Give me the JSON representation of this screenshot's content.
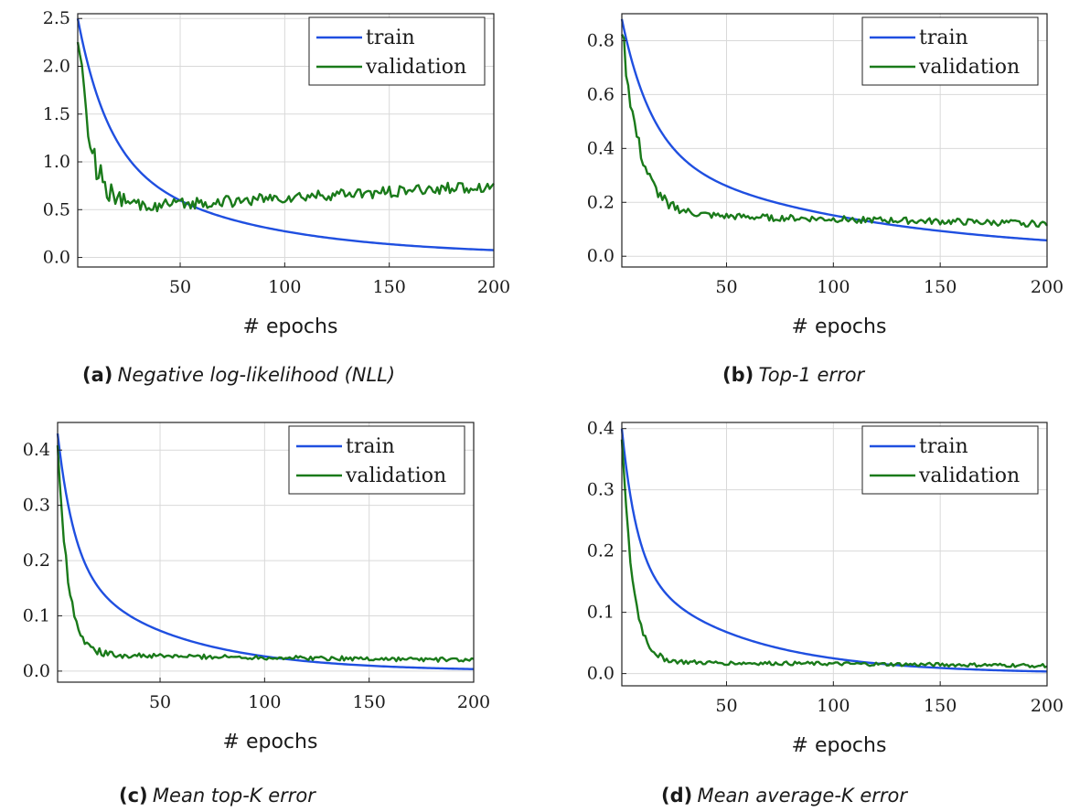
{
  "chart_data": [
    {
      "type": "line",
      "panel_label": "(a)",
      "caption": "Negative log-likelihood (NLL)",
      "xlabel": "# epochs",
      "xticks": [
        50,
        100,
        150,
        200
      ],
      "yticks": [
        0.0,
        0.5,
        1.0,
        1.5,
        2.0,
        2.5
      ],
      "ytick_labels": [
        "0.0",
        "0.5",
        "1.0",
        "1.5",
        "2.0",
        "2.5"
      ],
      "xlim": [
        1,
        200
      ],
      "ylim": [
        -0.1,
        2.55
      ],
      "grid": true,
      "legend_position": "top-right",
      "series": [
        {
          "name": "train",
          "color": "#1f4fe0",
          "start": 2.5,
          "end": 0.02,
          "tau": 14,
          "k2": 0.015,
          "amp": 0
        },
        {
          "name": "validation",
          "color": "#1a7a1a",
          "start": 2.45,
          "mid_min": 0.53,
          "end": 0.75,
          "tau": 6,
          "amp": 0.06
        }
      ]
    },
    {
      "type": "line",
      "panel_label": "(b)",
      "caption": "Top-1 error",
      "xlabel": "# epochs",
      "xticks": [
        50,
        100,
        150,
        200
      ],
      "yticks": [
        0.0,
        0.2,
        0.4,
        0.6,
        0.8
      ],
      "ytick_labels": [
        "0.0",
        "0.2",
        "0.4",
        "0.6",
        "0.8"
      ],
      "xlim": [
        1,
        200
      ],
      "ylim": [
        -0.04,
        0.9
      ],
      "grid": true,
      "legend_position": "top-right",
      "series": [
        {
          "name": "train",
          "color": "#1f4fe0",
          "start": 0.88,
          "end": 0.005,
          "tau": 14,
          "k2": 0.01,
          "amp": 0
        },
        {
          "name": "validation",
          "color": "#1a7a1a",
          "start": 0.86,
          "mid_min": 0.15,
          "end": 0.12,
          "tau": 8,
          "amp": 0.012
        }
      ]
    },
    {
      "type": "line",
      "panel_label": "(c)",
      "caption": "Mean top-K error",
      "xlabel": "# epochs",
      "xticks": [
        50,
        100,
        150,
        200
      ],
      "yticks": [
        0.0,
        0.1,
        0.2,
        0.3,
        0.4
      ],
      "ytick_labels": [
        "0.0",
        "0.1",
        "0.2",
        "0.3",
        "0.4"
      ],
      "xlim": [
        1,
        200
      ],
      "ylim": [
        -0.02,
        0.45
      ],
      "grid": true,
      "legend_position": "top-right",
      "series": [
        {
          "name": "train",
          "color": "#1f4fe0",
          "start": 0.43,
          "end": 0.0,
          "tau": 8,
          "k2": 0.02,
          "amp": 0
        },
        {
          "name": "validation",
          "color": "#1a7a1a",
          "start": 0.42,
          "mid_min": 0.028,
          "end": 0.02,
          "tau": 5,
          "amp": 0.004
        }
      ]
    },
    {
      "type": "line",
      "panel_label": "(d)",
      "caption": "Mean average-K error",
      "xlabel": "# epochs",
      "xticks": [
        50,
        100,
        150,
        200
      ],
      "yticks": [
        0.0,
        0.1,
        0.2,
        0.3,
        0.4
      ],
      "ytick_labels": [
        "0.0",
        "0.1",
        "0.2",
        "0.3",
        "0.4"
      ],
      "xlim": [
        1,
        200
      ],
      "ylim": [
        -0.02,
        0.41
      ],
      "grid": true,
      "legend_position": "top-right",
      "series": [
        {
          "name": "train",
          "color": "#1f4fe0",
          "start": 0.4,
          "end": 0.0,
          "tau": 7,
          "k2": 0.02,
          "amp": 0
        },
        {
          "name": "validation",
          "color": "#1a7a1a",
          "start": 0.39,
          "mid_min": 0.018,
          "end": 0.013,
          "tau": 5,
          "amp": 0.003
        }
      ]
    }
  ]
}
